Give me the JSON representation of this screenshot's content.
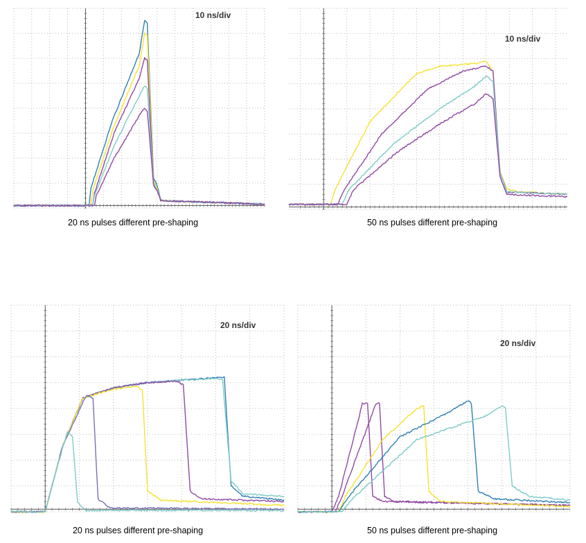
{
  "colors": {
    "background": "#ffffff",
    "grid": "#a8a8a8",
    "axis": "#555555",
    "trace_blue": "#2f7fb3",
    "trace_yellow": "#f4e233",
    "trace_purple": "#8e4aa3",
    "trace_teal": "#7ecbc7",
    "trace_violet": "#7b6fb3"
  },
  "chart_data": [
    {
      "type": "line",
      "title": "",
      "time_scale_label": "10 ns/div",
      "caption": "20 ns pulses different pre-shaping",
      "xlabel": "",
      "ylabel": "",
      "x_unit": "div",
      "xlim": [
        -4,
        10
      ],
      "ylim": [
        0,
        8
      ],
      "grid": true,
      "series": [
        {
          "color": "#2f7fb3",
          "points": [
            [
              -4,
              0.1
            ],
            [
              0.2,
              0.1
            ],
            [
              0.3,
              0.8
            ],
            [
              1.5,
              3.5
            ],
            [
              3.0,
              6.2
            ],
            [
              3.3,
              7.5
            ],
            [
              3.45,
              7.4
            ],
            [
              3.8,
              1.2
            ],
            [
              4.0,
              0.9
            ],
            [
              4.2,
              0.3
            ],
            [
              10,
              0.15
            ]
          ]
        },
        {
          "color": "#f4e233",
          "points": [
            [
              -4,
              0.1
            ],
            [
              0.3,
              0.1
            ],
            [
              0.4,
              0.7
            ],
            [
              1.6,
              3.3
            ],
            [
              3.0,
              5.7
            ],
            [
              3.3,
              7.0
            ],
            [
              3.45,
              6.9
            ],
            [
              3.8,
              1.1
            ],
            [
              4.0,
              0.8
            ],
            [
              4.2,
              0.3
            ],
            [
              10,
              0.15
            ]
          ]
        },
        {
          "color": "#8e4aa3",
          "points": [
            [
              -4,
              0.1
            ],
            [
              0.4,
              0.1
            ],
            [
              0.5,
              0.6
            ],
            [
              1.6,
              3.0
            ],
            [
              3.0,
              5.2
            ],
            [
              3.3,
              6.0
            ],
            [
              3.45,
              5.9
            ],
            [
              3.8,
              1.0
            ],
            [
              4.0,
              0.7
            ],
            [
              4.2,
              0.3
            ],
            [
              10,
              0.15
            ]
          ]
        },
        {
          "color": "#7ecbc7",
          "points": [
            [
              -4,
              0.1
            ],
            [
              0.4,
              0.1
            ],
            [
              0.5,
              0.5
            ],
            [
              1.6,
              2.5
            ],
            [
              3.0,
              4.5
            ],
            [
              3.3,
              4.9
            ],
            [
              3.45,
              4.8
            ],
            [
              3.8,
              1.0
            ],
            [
              4.0,
              0.7
            ],
            [
              4.2,
              0.3
            ],
            [
              10,
              0.15
            ]
          ]
        },
        {
          "color": "#8e4aa3",
          "points": [
            [
              -4,
              0.1
            ],
            [
              0.5,
              0.1
            ],
            [
              0.6,
              0.5
            ],
            [
              1.6,
              2.0
            ],
            [
              3.0,
              3.7
            ],
            [
              3.3,
              4.0
            ],
            [
              3.45,
              3.9
            ],
            [
              3.8,
              0.9
            ],
            [
              4.0,
              0.7
            ],
            [
              4.2,
              0.3
            ],
            [
              10,
              0.15
            ]
          ]
        }
      ]
    },
    {
      "type": "line",
      "title": "",
      "time_scale_label": "10 ns/div",
      "caption": "50 ns pulses different pre-shaping",
      "xlabel": "",
      "ylabel": "",
      "x_unit": "div",
      "xlim": [
        -1.5,
        10.5
      ],
      "ylim": [
        0,
        8
      ],
      "grid": true,
      "series": [
        {
          "color": "#f4e233",
          "points": [
            [
              -1.5,
              0.2
            ],
            [
              0.3,
              0.2
            ],
            [
              0.5,
              0.8
            ],
            [
              2.0,
              3.5
            ],
            [
              4.0,
              5.4
            ],
            [
              5.0,
              5.7
            ],
            [
              6.5,
              5.8
            ],
            [
              7.0,
              5.9
            ],
            [
              7.3,
              5.5
            ],
            [
              7.6,
              1.5
            ],
            [
              7.9,
              0.8
            ],
            [
              8.5,
              0.7
            ],
            [
              10.5,
              0.6
            ]
          ]
        },
        {
          "color": "#8e4aa3",
          "points": [
            [
              -1.5,
              0.2
            ],
            [
              0.6,
              0.2
            ],
            [
              0.9,
              0.8
            ],
            [
              2.5,
              3.0
            ],
            [
              4.5,
              4.8
            ],
            [
              6.0,
              5.5
            ],
            [
              7.0,
              5.7
            ],
            [
              7.3,
              5.5
            ],
            [
              7.6,
              1.5
            ],
            [
              7.9,
              0.7
            ],
            [
              10.5,
              0.6
            ]
          ]
        },
        {
          "color": "#7ecbc7",
          "points": [
            [
              -1.5,
              0.2
            ],
            [
              0.8,
              0.2
            ],
            [
              1.1,
              0.8
            ],
            [
              3.0,
              2.6
            ],
            [
              5.0,
              4.0
            ],
            [
              6.5,
              4.9
            ],
            [
              7.0,
              5.3
            ],
            [
              7.3,
              5.1
            ],
            [
              7.6,
              1.5
            ],
            [
              7.9,
              0.7
            ],
            [
              10.5,
              0.6
            ]
          ]
        },
        {
          "color": "#8e4aa3",
          "points": [
            [
              -1.5,
              0.2
            ],
            [
              1.0,
              0.2
            ],
            [
              1.3,
              0.8
            ],
            [
              3.2,
              2.3
            ],
            [
              5.0,
              3.4
            ],
            [
              6.5,
              4.2
            ],
            [
              7.0,
              4.6
            ],
            [
              7.3,
              4.4
            ],
            [
              7.6,
              1.3
            ],
            [
              7.9,
              0.6
            ],
            [
              10.5,
              0.5
            ]
          ]
        }
      ]
    },
    {
      "type": "line",
      "title": "",
      "time_scale_label": "20 ns/div",
      "caption": "20 ns pulses different pre-shaping",
      "xlabel": "",
      "ylabel": "",
      "x_unit": "div",
      "xlim": [
        -1,
        7
      ],
      "ylim": [
        0,
        8
      ],
      "grid": true,
      "series": [
        {
          "color": "#2f7fb3",
          "points": [
            [
              -1,
              0
            ],
            [
              0.0,
              0
            ],
            [
              0.5,
              2.5
            ],
            [
              1.1,
              4.4
            ],
            [
              2.0,
              4.8
            ],
            [
              3.0,
              5.0
            ],
            [
              4.0,
              5.1
            ],
            [
              5.1,
              5.2
            ],
            [
              5.25,
              5.2
            ],
            [
              5.45,
              1.0
            ],
            [
              5.8,
              0.6
            ],
            [
              7,
              0.45
            ]
          ]
        },
        {
          "color": "#7ecbc7",
          "points": [
            [
              -1,
              0
            ],
            [
              0.0,
              0
            ],
            [
              0.5,
              2.5
            ],
            [
              1.1,
              4.4
            ],
            [
              2.0,
              4.8
            ],
            [
              3.0,
              5.0
            ],
            [
              4.0,
              5.1
            ],
            [
              5.0,
              5.15
            ],
            [
              5.2,
              5.1
            ],
            [
              5.45,
              1.2
            ],
            [
              5.8,
              0.7
            ],
            [
              7,
              0.6
            ]
          ]
        },
        {
          "color": "#8e4aa3",
          "points": [
            [
              -1,
              0
            ],
            [
              0.0,
              0
            ],
            [
              0.5,
              2.5
            ],
            [
              1.1,
              4.4
            ],
            [
              2.0,
              4.8
            ],
            [
              3.0,
              5.0
            ],
            [
              3.9,
              5.05
            ],
            [
              4.05,
              4.9
            ],
            [
              4.25,
              0.8
            ],
            [
              4.6,
              0.5
            ],
            [
              7,
              0.4
            ]
          ]
        },
        {
          "color": "#f4e233",
          "points": [
            [
              -1,
              0
            ],
            [
              0.0,
              0
            ],
            [
              0.5,
              2.5
            ],
            [
              1.1,
              4.4
            ],
            [
              2.0,
              4.75
            ],
            [
              2.7,
              4.85
            ],
            [
              2.85,
              4.7
            ],
            [
              3.0,
              0.8
            ],
            [
              3.4,
              0.45
            ],
            [
              7,
              0.25
            ]
          ]
        },
        {
          "color": "#7b6fb3",
          "points": [
            [
              -1,
              0
            ],
            [
              0.0,
              0
            ],
            [
              0.5,
              2.5
            ],
            [
              1.2,
              4.5
            ],
            [
              1.4,
              4.4
            ],
            [
              1.55,
              0.5
            ],
            [
              1.9,
              0.15
            ],
            [
              7,
              0.1
            ]
          ]
        },
        {
          "color": "#7ecbc7",
          "points": [
            [
              -1,
              0
            ],
            [
              0.0,
              0
            ],
            [
              0.3,
              1.5
            ],
            [
              0.65,
              3.1
            ],
            [
              0.8,
              2.9
            ],
            [
              0.95,
              0.35
            ],
            [
              1.2,
              0.05
            ],
            [
              7,
              0.05
            ]
          ]
        }
      ]
    },
    {
      "type": "line",
      "title": "",
      "time_scale_label": "20 ns/div",
      "caption": "50 ns pulses different pre-shaping",
      "xlabel": "",
      "ylabel": "",
      "x_unit": "div",
      "xlim": [
        -1,
        7
      ],
      "ylim": [
        0,
        8
      ],
      "grid": true,
      "series": [
        {
          "color": "#8e4aa3",
          "points": [
            [
              -1,
              0
            ],
            [
              0.0,
              0
            ],
            [
              0.2,
              0.6
            ],
            [
              0.9,
              4.2
            ],
            [
              1.05,
              4.2
            ],
            [
              1.2,
              0.6
            ],
            [
              1.5,
              0.4
            ],
            [
              7,
              0.25
            ]
          ]
        },
        {
          "color": "#8e4aa3",
          "points": [
            [
              -1,
              0
            ],
            [
              0.1,
              0
            ],
            [
              0.3,
              0.6
            ],
            [
              1.3,
              4.2
            ],
            [
              1.4,
              4.2
            ],
            [
              1.55,
              0.6
            ],
            [
              1.8,
              0.4
            ],
            [
              7,
              0.25
            ]
          ]
        },
        {
          "color": "#f4e233",
          "points": [
            [
              -1,
              0
            ],
            [
              0.2,
              0
            ],
            [
              0.4,
              0.6
            ],
            [
              1.5,
              2.8
            ],
            [
              2.5,
              4.0
            ],
            [
              2.7,
              4.1
            ],
            [
              2.85,
              0.8
            ],
            [
              3.2,
              0.4
            ],
            [
              7,
              0.2
            ]
          ]
        },
        {
          "color": "#2f7fb3",
          "points": [
            [
              -1,
              0
            ],
            [
              0.2,
              0
            ],
            [
              0.5,
              0.6
            ],
            [
              2.0,
              2.9
            ],
            [
              3.5,
              3.9
            ],
            [
              4.0,
              4.3
            ],
            [
              4.1,
              4.2
            ],
            [
              4.3,
              0.8
            ],
            [
              4.8,
              0.5
            ],
            [
              7,
              0.35
            ]
          ]
        },
        {
          "color": "#7ecbc7",
          "points": [
            [
              -1,
              0
            ],
            [
              0.3,
              0
            ],
            [
              0.6,
              0.5
            ],
            [
              2.5,
              2.8
            ],
            [
              4.5,
              3.7
            ],
            [
              5.0,
              4.1
            ],
            [
              5.1,
              4.0
            ],
            [
              5.3,
              1.0
            ],
            [
              5.8,
              0.6
            ],
            [
              7,
              0.45
            ]
          ]
        }
      ]
    }
  ]
}
